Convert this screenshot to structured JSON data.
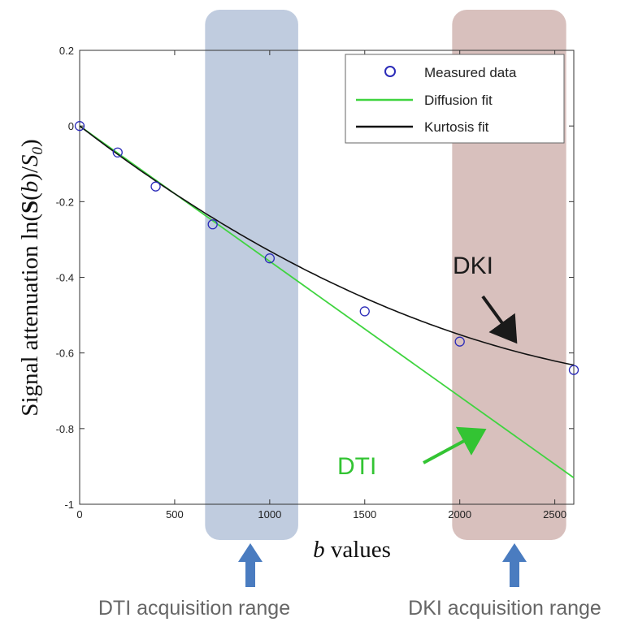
{
  "chart_data": {
    "type": "scatter",
    "xlabel": "values",
    "xlabel_var": "b",
    "ylabel_prefix": "Signal attenuation ln(",
    "ylabel_S": "S",
    "ylabel_b": "b",
    "ylabel_mid": ")/",
    "ylabel_S0": "S",
    "ylabel_sub0": "0",
    "ylabel_close": ")",
    "xlim": [
      0,
      2600
    ],
    "ylim": [
      -1,
      0.2
    ],
    "xticks": [
      0,
      500,
      1000,
      1500,
      2000,
      2500
    ],
    "xtick_labels": [
      "0",
      "500",
      "1000",
      "1500",
      "2000",
      "2500"
    ],
    "yticks": [
      0.2,
      0,
      -0.2,
      -0.4,
      -0.6,
      -0.8,
      -1
    ],
    "ytick_labels": [
      "0.2",
      "0",
      "-0.2",
      "-0.4",
      "-0.6",
      "-0.8",
      "-1"
    ],
    "grid": false,
    "legend_position": "top-right",
    "series": [
      {
        "name": "Measured data",
        "kind": "markers",
        "marker": "circle",
        "color": "#2b2bb8",
        "x": [
          0,
          200,
          400,
          700,
          1000,
          1500,
          2000,
          2600
        ],
        "y": [
          0,
          -0.07,
          -0.16,
          -0.26,
          -0.35,
          -0.49,
          -0.57,
          -0.645
        ]
      },
      {
        "name": "Diffusion fit",
        "kind": "line",
        "color": "#3fd43f",
        "x": [
          0,
          2600
        ],
        "y": [
          0,
          -0.93
        ]
      },
      {
        "name": "Kurtosis fit",
        "kind": "curve",
        "color": "#111111",
        "coefficients": {
          "D": 0.000385,
          "K": 5.46e-08
        },
        "x_range": [
          0,
          2600
        ]
      }
    ],
    "shaded_ranges": [
      {
        "id": "dti",
        "x": [
          660,
          1150
        ],
        "color": "#a7b9d3",
        "label": "DTI acquisition range"
      },
      {
        "id": "dki",
        "x": [
          1960,
          2560
        ],
        "color": "#c9a7a3",
        "label": "DKI acquisition range"
      }
    ],
    "annotations": [
      {
        "text": "DKI",
        "color": "#1a1a1a",
        "points_to": [
          2330,
          -0.61
        ]
      },
      {
        "text": "DTI",
        "color": "#33c433",
        "points_to": [
          2180,
          -0.795
        ]
      }
    ],
    "range_arrow_color": "#4a7cc0"
  }
}
